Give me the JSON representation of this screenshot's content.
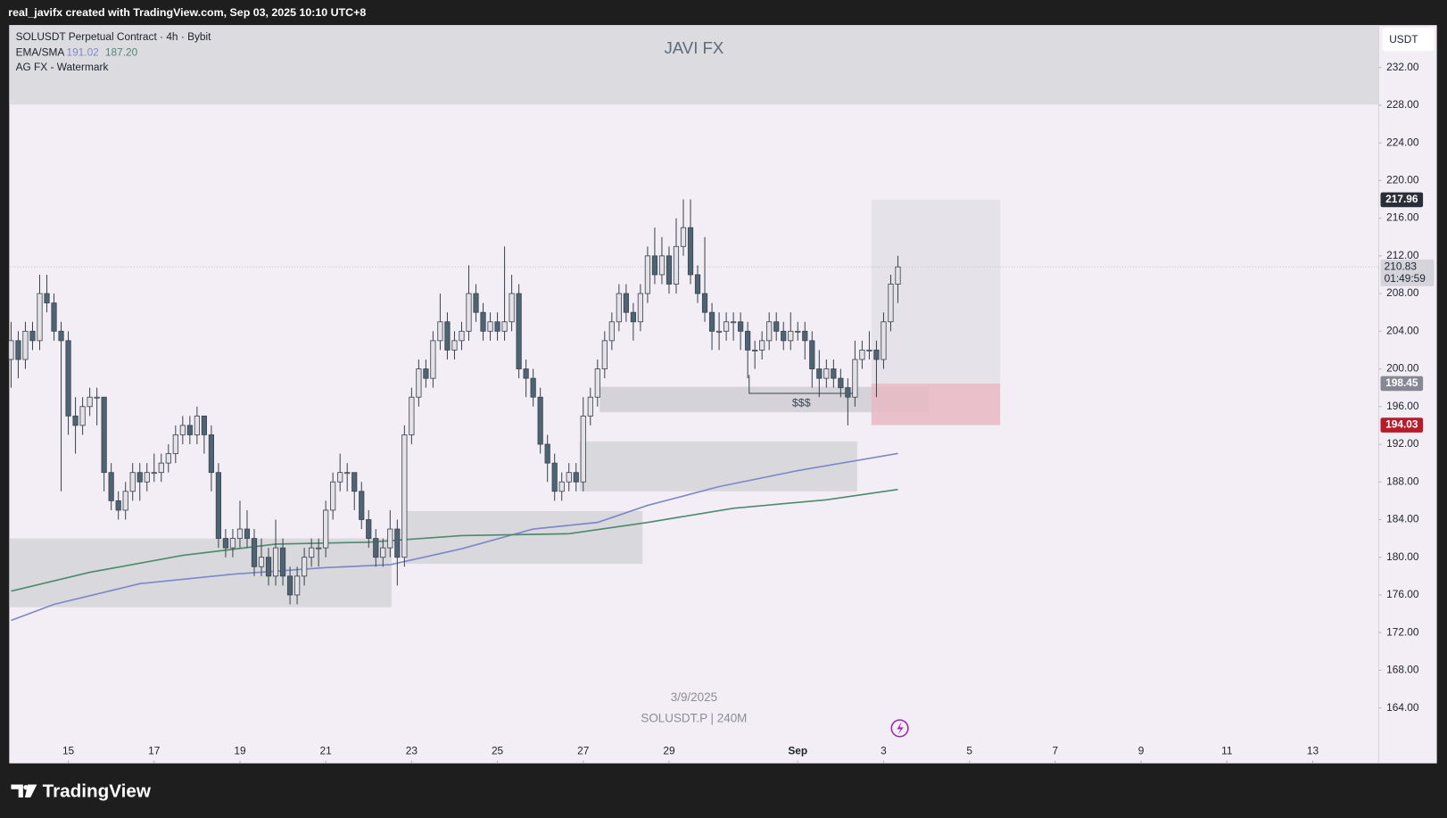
{
  "header": {
    "credit": "real_javifx created with TradingView.com, Sep 03, 2025 10:10 UTC+8"
  },
  "footer": {
    "brand": "TradingView"
  },
  "chart_data": {
    "type": "candlestick",
    "title": "SOLUSDT Perpetual Contract · 4h · Bybit",
    "watermark_text": "JAVI FX",
    "watermark_name": "AG FX - Watermark",
    "currency": "USDT",
    "date_label": "3/9/2025",
    "symbol_label": "SOLUSDT.P | 240M",
    "indicators": {
      "name": "EMA/SMA",
      "values": [
        191.02,
        187.2
      ],
      "value_labels": [
        "191.02",
        "187.20"
      ],
      "colors": [
        "#7e88c8",
        "#4f8a6e"
      ]
    },
    "candle_colors": {
      "up": "#e4e1e7",
      "down": "#4e6472",
      "wick": "#3c4650"
    },
    "candles": [
      [
        201,
        205,
        198,
        203
      ],
      [
        203,
        204,
        199,
        201
      ],
      [
        201,
        205,
        200,
        204
      ],
      [
        204,
        205,
        202,
        203
      ],
      [
        203,
        210,
        202,
        208
      ],
      [
        208,
        210,
        206,
        207
      ],
      [
        207,
        208,
        203,
        204
      ],
      [
        204,
        205,
        187,
        203
      ],
      [
        203,
        204,
        193,
        195
      ],
      [
        195,
        197,
        191,
        194
      ],
      [
        194,
        197,
        193,
        196
      ],
      [
        196,
        198,
        195,
        197
      ],
      [
        197,
        198,
        194,
        197
      ],
      [
        197,
        197,
        187,
        189
      ],
      [
        189,
        190,
        185,
        186
      ],
      [
        186,
        187,
        184,
        185
      ],
      [
        185,
        188,
        184,
        187
      ],
      [
        187,
        190,
        186,
        189
      ],
      [
        189,
        190,
        186,
        188
      ],
      [
        188,
        190,
        187,
        189
      ],
      [
        189,
        191,
        188,
        189
      ],
      [
        189,
        191,
        188,
        190
      ],
      [
        190,
        192,
        189,
        191
      ],
      [
        191,
        194,
        190,
        193
      ],
      [
        193,
        195,
        192,
        194
      ],
      [
        194,
        195,
        192,
        193
      ],
      [
        193,
        196,
        192,
        195
      ],
      [
        195,
        195,
        191,
        193
      ],
      [
        193,
        194,
        187,
        189
      ],
      [
        189,
        190,
        181,
        182
      ],
      [
        182,
        183,
        180,
        181
      ],
      [
        181,
        183,
        180,
        182
      ],
      [
        182,
        186,
        181,
        183
      ],
      [
        183,
        185,
        181,
        182
      ],
      [
        182,
        183,
        178,
        179
      ],
      [
        179,
        182,
        178,
        180
      ],
      [
        180,
        181,
        177,
        178
      ],
      [
        178,
        184,
        177,
        181
      ],
      [
        181,
        182,
        177,
        178
      ],
      [
        178,
        179,
        175,
        176
      ],
      [
        176,
        179,
        175,
        178
      ],
      [
        178,
        181,
        177,
        180
      ],
      [
        180,
        182,
        179,
        181
      ],
      [
        181,
        182,
        179,
        181
      ],
      [
        181,
        186,
        180,
        185
      ],
      [
        185,
        189,
        184,
        188
      ],
      [
        188,
        191,
        187,
        189
      ],
      [
        189,
        190,
        187,
        189
      ],
      [
        189,
        189,
        185,
        187
      ],
      [
        187,
        188,
        183,
        184
      ],
      [
        184,
        185,
        181,
        182
      ],
      [
        182,
        183,
        179,
        180
      ],
      [
        180,
        182,
        179,
        181
      ],
      [
        181,
        185,
        180,
        183
      ],
      [
        183,
        184,
        177,
        180
      ],
      [
        180,
        194,
        179,
        193
      ],
      [
        193,
        198,
        192,
        197
      ],
      [
        197,
        201,
        196,
        200
      ],
      [
        200,
        201,
        198,
        199
      ],
      [
        199,
        204,
        198,
        203
      ],
      [
        203,
        208,
        202,
        205
      ],
      [
        205,
        206,
        201,
        202
      ],
      [
        202,
        204,
        201,
        203
      ],
      [
        203,
        205,
        202,
        204
      ],
      [
        204,
        211,
        203,
        208
      ],
      [
        208,
        209,
        205,
        206
      ],
      [
        206,
        207,
        203,
        204
      ],
      [
        204,
        206,
        203,
        205
      ],
      [
        205,
        206,
        203,
        204
      ],
      [
        204,
        213,
        203,
        205
      ],
      [
        205,
        210,
        204,
        208
      ],
      [
        208,
        209,
        199,
        200
      ],
      [
        200,
        201,
        197,
        199
      ],
      [
        199,
        200,
        196,
        197
      ],
      [
        197,
        198,
        191,
        192
      ],
      [
        192,
        193,
        188,
        190
      ],
      [
        190,
        191,
        186,
        187
      ],
      [
        187,
        189,
        186,
        188
      ],
      [
        188,
        190,
        187,
        189
      ],
      [
        189,
        190,
        187,
        188
      ],
      [
        188,
        197,
        187,
        195
      ],
      [
        195,
        198,
        194,
        197
      ],
      [
        197,
        201,
        196,
        200
      ],
      [
        200,
        204,
        199,
        203
      ],
      [
        203,
        206,
        202,
        205
      ],
      [
        205,
        209,
        204,
        208
      ],
      [
        208,
        209,
        205,
        206
      ],
      [
        206,
        207,
        203,
        205
      ],
      [
        205,
        209,
        204,
        208
      ],
      [
        208,
        213,
        207,
        212
      ],
      [
        212,
        215,
        209,
        210
      ],
      [
        210,
        214,
        209,
        212
      ],
      [
        212,
        213,
        208,
        209
      ],
      [
        209,
        216,
        208,
        213
      ],
      [
        213,
        218,
        212,
        215
      ],
      [
        215,
        218,
        209,
        210
      ],
      [
        210,
        211,
        207,
        208
      ],
      [
        208,
        214,
        205,
        206
      ],
      [
        206,
        207,
        202,
        204
      ],
      [
        204,
        206,
        202,
        204
      ],
      [
        204,
        206,
        203,
        205
      ],
      [
        205,
        206,
        203,
        205
      ],
      [
        205,
        206,
        202,
        204
      ],
      [
        204,
        205,
        199,
        202
      ],
      [
        202,
        203,
        200,
        202
      ],
      [
        202,
        204,
        201,
        203
      ],
      [
        203,
        206,
        202,
        205
      ],
      [
        205,
        206,
        203,
        204
      ],
      [
        204,
        205,
        202,
        203
      ],
      [
        203,
        206,
        202,
        204
      ],
      [
        204,
        205,
        203,
        204
      ],
      [
        204,
        205,
        201,
        203
      ],
      [
        203,
        204,
        198,
        200
      ],
      [
        200,
        202,
        197,
        199
      ],
      [
        199,
        201,
        198,
        200
      ],
      [
        200,
        201,
        198,
        199
      ],
      [
        199,
        200,
        197,
        198
      ],
      [
        198,
        199,
        194,
        197
      ],
      [
        197,
        203,
        196,
        201
      ],
      [
        201,
        203,
        200,
        202
      ],
      [
        202,
        204,
        201,
        202
      ],
      [
        202,
        203,
        197,
        201
      ],
      [
        201,
        206,
        200,
        205
      ],
      [
        205,
        210,
        204,
        209
      ],
      [
        209,
        212,
        207,
        210.83
      ]
    ],
    "lines": [
      {
        "color": "#7e88c8",
        "x": [
          0,
          6,
          18,
          31,
          44,
          53,
          63,
          73,
          82,
          89,
          99,
          110,
          124
        ],
        "values": [
          173.3,
          175,
          177.2,
          178.2,
          178.9,
          179.2,
          180.9,
          183,
          183.7,
          185.5,
          187.5,
          189.2,
          191.02
        ]
      },
      {
        "color": "#4f8a6e",
        "x": [
          0,
          11,
          24,
          37,
          50,
          63,
          78,
          89,
          101,
          114,
          124
        ],
        "values": [
          176.4,
          178.4,
          180.2,
          181.4,
          181.6,
          182.3,
          182.5,
          183.7,
          185.2,
          186.1,
          187.2
        ]
      }
    ],
    "zones": [
      {
        "x": [
          -0.26,
          53.2
        ],
        "y": [
          182,
          174.7
        ],
        "color": "#d4d3d8"
      },
      {
        "x": [
          55.2,
          88.3
        ],
        "y": [
          184.9,
          179.3
        ],
        "color": "#d4d3d8"
      },
      {
        "x": [
          79.5,
          118.3
        ],
        "y": [
          192.3,
          187
        ],
        "color": "#d4d3d8"
      },
      {
        "x": [
          82.3,
          128.3
        ],
        "y": [
          198.1,
          195.4
        ],
        "color": "#cfced3"
      }
    ],
    "liquidity": {
      "label": "$$$",
      "x": [
        103.2,
        117.8
      ],
      "value": 197.4
    },
    "position": {
      "x": [
        120.3,
        138.3
      ],
      "target": 217.96,
      "entry": 198.45,
      "stop": 194.03,
      "colors": [
        "#e3dfe6",
        "#e7b9c3"
      ],
      "tag_colors": [
        "#2a2e39",
        "#868993",
        "#b71c2c"
      ]
    },
    "last_price": {
      "value": 210.83,
      "countdown": "01:49:59"
    },
    "xlim": [
      -0.26,
      191.23
    ],
    "xticks": [
      {
        "value": 8,
        "label": "15"
      },
      {
        "value": 20,
        "label": "17"
      },
      {
        "value": 32,
        "label": "19"
      },
      {
        "value": 44,
        "label": "21"
      },
      {
        "value": 56,
        "label": "23"
      },
      {
        "value": 68,
        "label": "25"
      },
      {
        "value": 80,
        "label": "27"
      },
      {
        "value": 92,
        "label": "29"
      },
      {
        "value": 110,
        "label": "Sep"
      },
      {
        "value": 122,
        "label": "3"
      },
      {
        "value": 134,
        "label": "5"
      },
      {
        "value": 146,
        "label": "7"
      },
      {
        "value": 158,
        "label": "9"
      },
      {
        "value": 170,
        "label": "11"
      },
      {
        "value": 182,
        "label": "13"
      }
    ],
    "ylim": [
      158.12,
      236.5
    ],
    "yticks": [
      {
        "value": 232,
        "label": "232.00"
      },
      {
        "value": 228,
        "label": "228.00"
      },
      {
        "value": 224,
        "label": "224.00"
      },
      {
        "value": 220,
        "label": "220.00"
      },
      {
        "value": 216,
        "label": "216.00"
      },
      {
        "value": 212,
        "label": "212.00"
      },
      {
        "value": 208,
        "label": "208.00"
      },
      {
        "value": 204,
        "label": "204.00"
      },
      {
        "value": 200,
        "label": "200.00"
      },
      {
        "value": 196,
        "label": "196.00"
      },
      {
        "value": 192,
        "label": "192.00"
      },
      {
        "value": 188,
        "label": "188.00"
      },
      {
        "value": 184,
        "label": "184.00"
      },
      {
        "value": 180,
        "label": "180.00"
      },
      {
        "value": 176,
        "label": "176.00"
      },
      {
        "value": 172,
        "label": "172.00"
      },
      {
        "value": 168,
        "label": "168.00"
      },
      {
        "value": 164,
        "label": "164.00"
      }
    ],
    "grid": false
  }
}
